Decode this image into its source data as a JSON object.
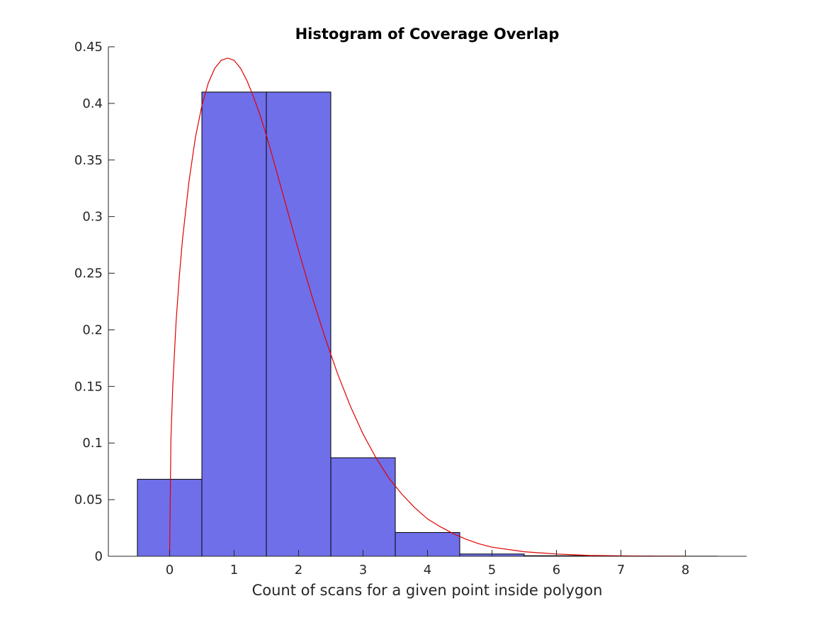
{
  "chart_data": {
    "type": "bar",
    "title": "Histogram of Coverage Overlap",
    "xlabel": "Count of scans for a given point inside polygon",
    "ylabel": "",
    "xlim": [
      -0.95,
      8.95
    ],
    "ylim": [
      0,
      0.45
    ],
    "grid": false,
    "xticks": [
      0,
      1,
      2,
      3,
      4,
      5,
      6,
      7,
      8
    ],
    "xtick_labels": [
      "0",
      "1",
      "2",
      "3",
      "4",
      "5",
      "6",
      "7",
      "8"
    ],
    "yticks": [
      0,
      0.05,
      0.1,
      0.15,
      0.2,
      0.25,
      0.3,
      0.35,
      0.4,
      0.45
    ],
    "ytick_labels": [
      "0",
      "0.05",
      "0.1",
      "0.15",
      "0.2",
      "0.25",
      "0.3",
      "0.35",
      "0.4",
      "0.45"
    ],
    "bin_width": 1,
    "categories": [
      0,
      1,
      2,
      3,
      4,
      5,
      6,
      7,
      8
    ],
    "values": [
      0.068,
      0.41,
      0.41,
      0.087,
      0.021,
      0.002,
      0.0005,
      0.0002,
      0.0001
    ],
    "bar_color": "#6f6fea",
    "bar_edge_color": "#000000",
    "fit_curve": {
      "color": "#e00000",
      "x": [
        0,
        0.02,
        0.05,
        0.1,
        0.15,
        0.2,
        0.3,
        0.4,
        0.5,
        0.6,
        0.7,
        0.8,
        0.9,
        1.0,
        1.1,
        1.2,
        1.3,
        1.4,
        1.5,
        1.6,
        1.8,
        2.0,
        2.2,
        2.4,
        2.6,
        2.8,
        3.0,
        3.2,
        3.4,
        3.6,
        3.8,
        4.0,
        4.2,
        4.4,
        4.6,
        4.8,
        5.0,
        5.5,
        6.0,
        6.5,
        7.0,
        7.5,
        8.0
      ],
      "y": [
        0,
        0.104,
        0.152,
        0.207,
        0.247,
        0.28,
        0.331,
        0.37,
        0.398,
        0.418,
        0.431,
        0.438,
        0.44,
        0.438,
        0.431,
        0.42,
        0.406,
        0.39,
        0.372,
        0.352,
        0.311,
        0.27,
        0.231,
        0.195,
        0.162,
        0.133,
        0.108,
        0.087,
        0.069,
        0.055,
        0.043,
        0.033,
        0.026,
        0.02,
        0.015,
        0.011,
        0.008,
        0.004,
        0.002,
        0.0008,
        0.0004,
        0.0002,
        0.0001
      ]
    }
  }
}
